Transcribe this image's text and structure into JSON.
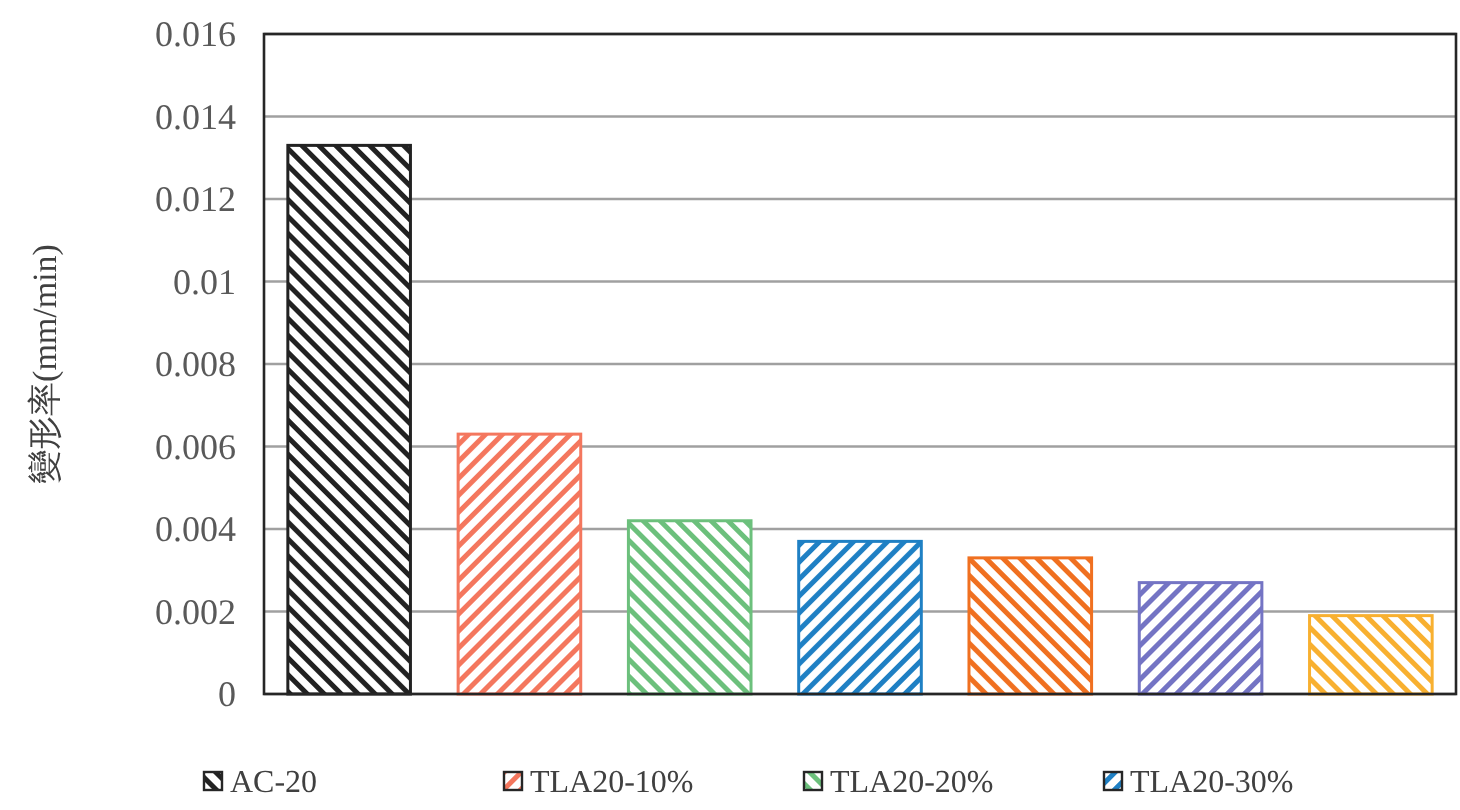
{
  "chart_data": {
    "type": "bar",
    "ylabel": "變形率(mm/min)",
    "categories": [
      null,
      null,
      null,
      null,
      null,
      null,
      null
    ],
    "series": [
      {
        "name": "AC-20",
        "color": "#222222",
        "values": [
          0.0133,
          null,
          null,
          null,
          null,
          null,
          null
        ]
      },
      {
        "name": "TLA20-10%",
        "color": "#f4775e",
        "values": [
          null,
          0.0063,
          null,
          null,
          null,
          null,
          null
        ]
      },
      {
        "name": "TLA20-20%",
        "color": "#6cc07c",
        "values": [
          null,
          null,
          0.0042,
          null,
          null,
          null,
          null
        ]
      },
      {
        "name": "TLA20-30%",
        "color": "#1f80c4",
        "values": [
          null,
          null,
          null,
          0.0037,
          null,
          null,
          null
        ]
      },
      {
        "color": "#f07020",
        "values": [
          null,
          null,
          null,
          null,
          0.0033,
          null,
          null
        ]
      },
      {
        "color": "#7474c4",
        "values": [
          null,
          null,
          null,
          null,
          null,
          0.0027,
          null
        ]
      },
      {
        "color": "#f8b030",
        "values": [
          null,
          null,
          null,
          null,
          null,
          null,
          0.0019
        ]
      }
    ],
    "ylim": [
      0,
      0.016
    ],
    "yticks": [
      0,
      0.002,
      0.004,
      0.006,
      0.008,
      0.01,
      0.012,
      0.014,
      0.016
    ],
    "grid": "y",
    "legend": "bottom"
  }
}
